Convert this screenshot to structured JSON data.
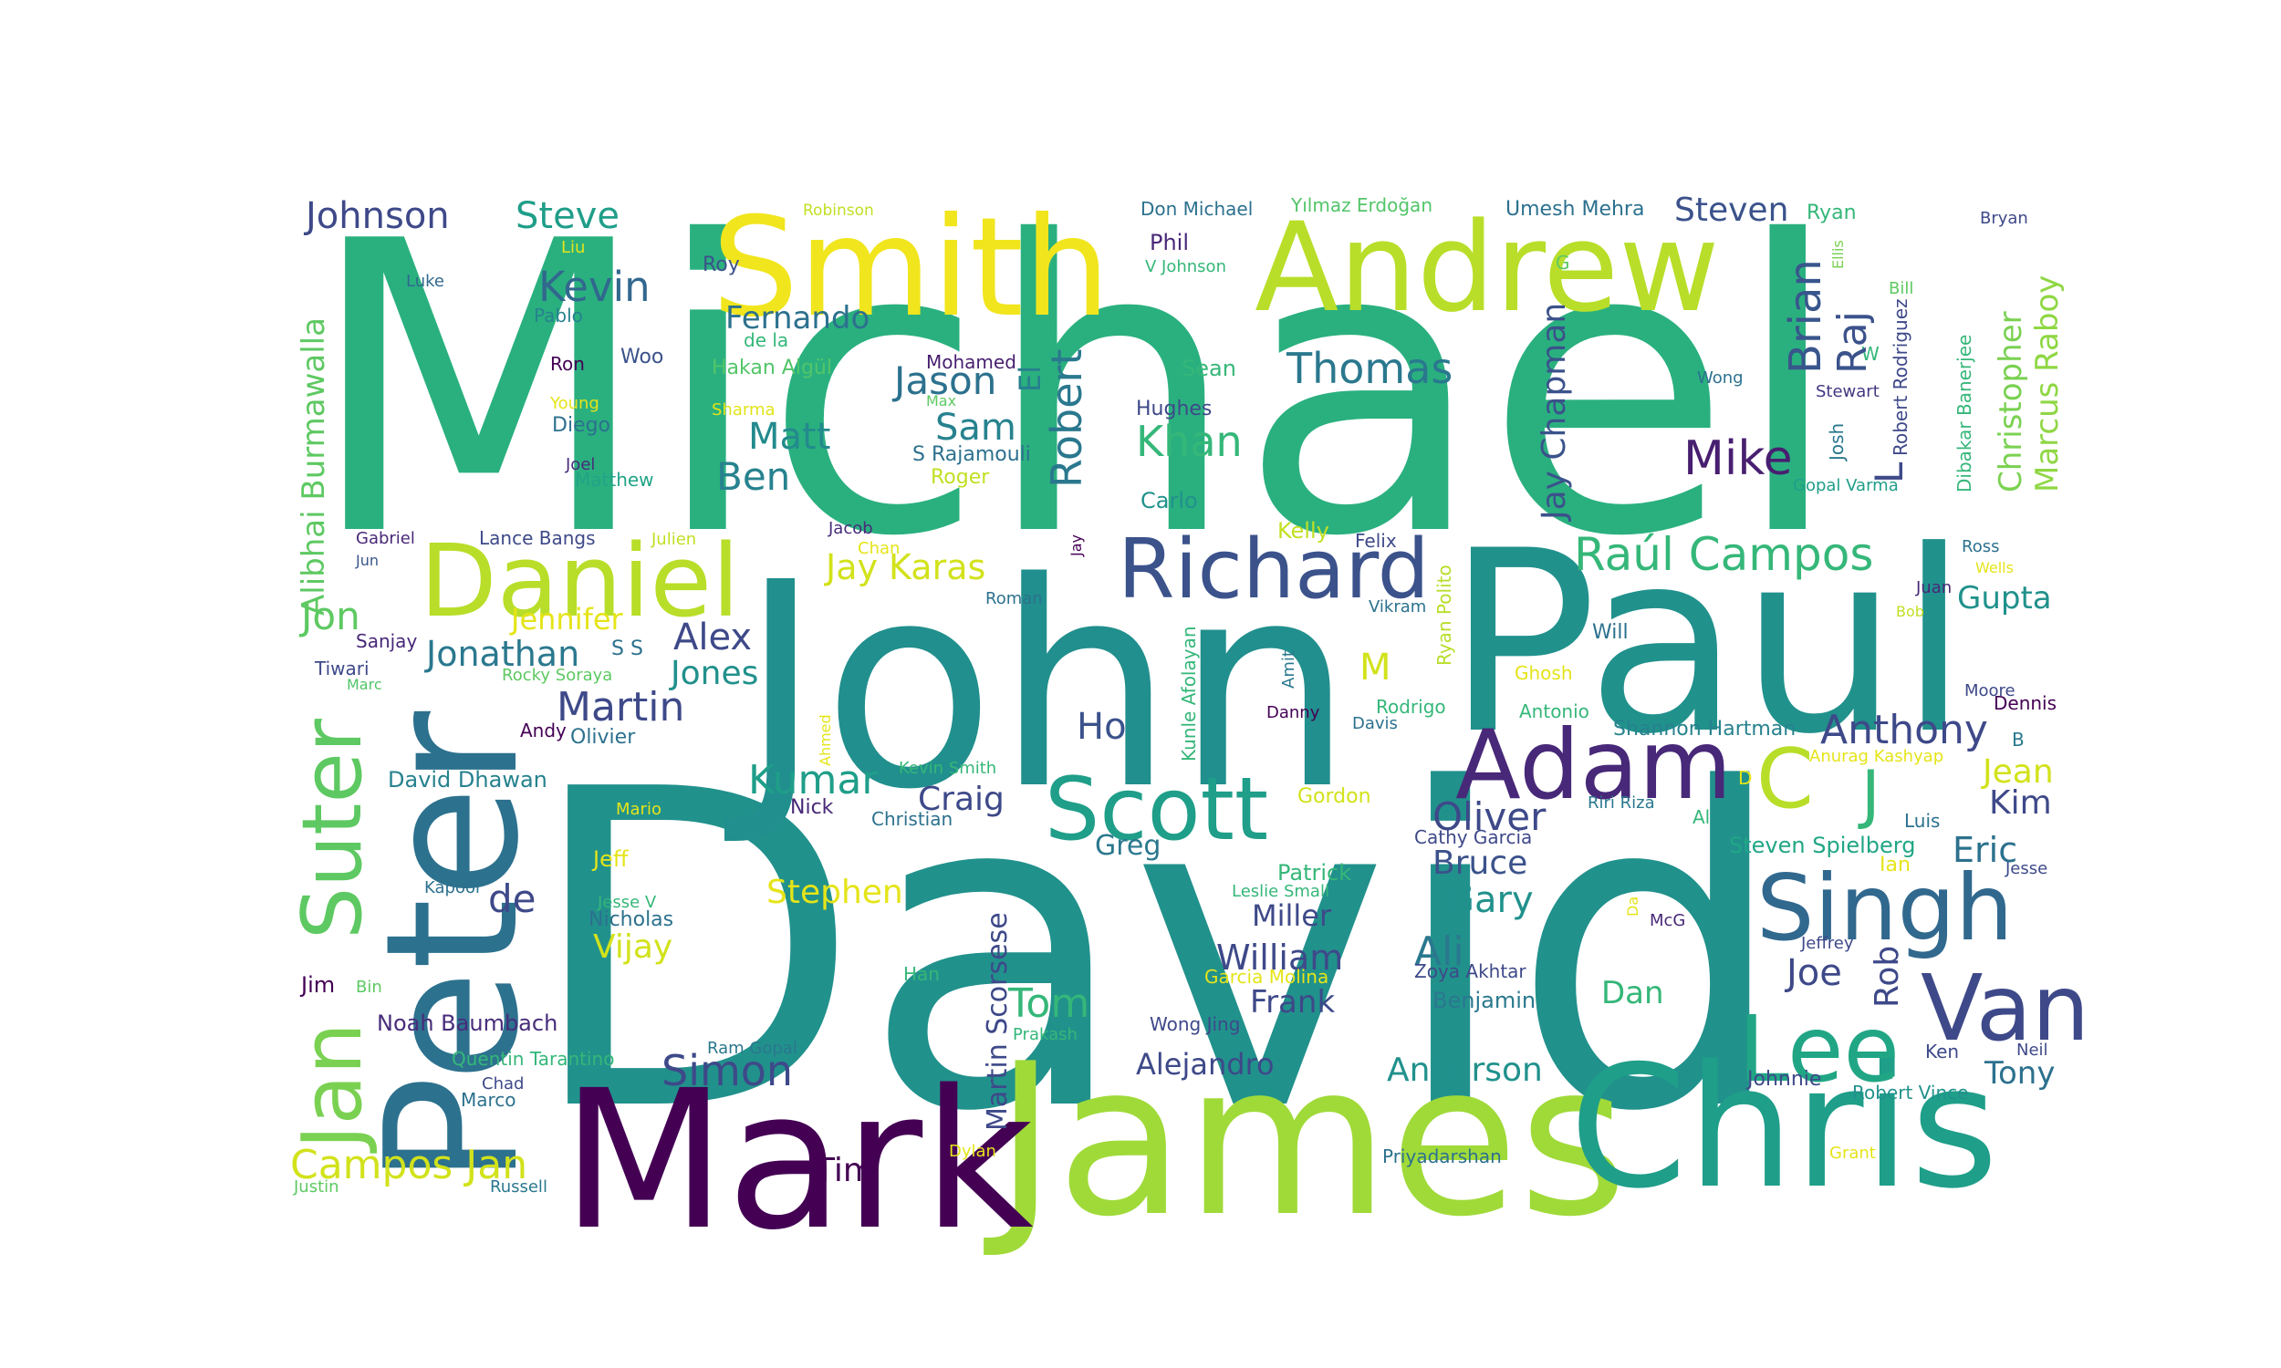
{
  "words": [
    {
      "text": "Michael",
      "color": "#2ab07f"
    },
    {
      "text": "David",
      "color": "#21918c"
    },
    {
      "text": "John",
      "color": "#218f8d"
    },
    {
      "text": "Paul",
      "color": "#21918c"
    },
    {
      "text": "James",
      "color": "#a0da39"
    },
    {
      "text": "Chris",
      "color": "#1f9e89"
    },
    {
      "text": "Mark",
      "color": "#440154"
    },
    {
      "text": "Peter",
      "color": "#2c718e"
    },
    {
      "text": "Smith",
      "color": "#f1e51d"
    },
    {
      "text": "Andrew",
      "color": "#b8de29"
    },
    {
      "text": "Daniel",
      "color": "#b8de29"
    },
    {
      "text": "Richard",
      "color": "#3b528b"
    },
    {
      "text": "Adam",
      "color": "#482878"
    },
    {
      "text": "Scott",
      "color": "#1f9e89"
    },
    {
      "text": "Singh",
      "color": "#31688e"
    },
    {
      "text": "Van",
      "color": "#3e4989"
    },
    {
      "text": "Lee",
      "color": "#21a685"
    },
    {
      "text": "Suter",
      "color": "#5ec962"
    },
    {
      "text": "Jan",
      "color": "#7ad151"
    },
    {
      "text": "Johnson",
      "color": "#3e4989"
    },
    {
      "text": "Steve",
      "color": "#1f9e89"
    },
    {
      "text": "Kevin",
      "color": "#31688e"
    },
    {
      "text": "Fernando",
      "color": "#2c718e"
    },
    {
      "text": "Robinson",
      "color": "#c2df23"
    },
    {
      "text": "Don Michael",
      "color": "#2c718e"
    },
    {
      "text": "Yılmaz Erdoğan",
      "color": "#52c569"
    },
    {
      "text": "Umesh Mehra",
      "color": "#2c718e"
    },
    {
      "text": "Steven",
      "color": "#3b528b"
    },
    {
      "text": "Ryan",
      "color": "#35b779"
    },
    {
      "text": "Bryan",
      "color": "#3e4989"
    },
    {
      "text": "Ellis",
      "color": "#7ad151"
    },
    {
      "text": "Bill",
      "color": "#5ec962"
    },
    {
      "text": "W",
      "color": "#35b779"
    },
    {
      "text": "Stewart",
      "color": "#453781"
    },
    {
      "text": "Wong",
      "color": "#2c718e"
    },
    {
      "text": "Robert Rodriguez",
      "color": "#3e4989"
    },
    {
      "text": "Dibakar Banerjee",
      "color": "#35b779"
    },
    {
      "text": "Christopher",
      "color": "#7ad151"
    },
    {
      "text": "Marcus Raboy",
      "color": "#8fd744"
    },
    {
      "text": "Josh",
      "color": "#2a788e"
    },
    {
      "text": "Gopal Varma",
      "color": "#1f9e89"
    },
    {
      "text": "Brian",
      "color": "#39568c"
    },
    {
      "text": "Raj",
      "color": "#3b528b"
    },
    {
      "text": "L",
      "color": "#3e4989"
    },
    {
      "text": "Jay Chapman",
      "color": "#3b528b"
    },
    {
      "text": "G",
      "color": "#5ec962"
    },
    {
      "text": "Mike",
      "color": "#481f70"
    },
    {
      "text": "Thomas",
      "color": "#2a788e"
    },
    {
      "text": "Khan",
      "color": "#35b779"
    },
    {
      "text": "Robert",
      "color": "#2a788e"
    },
    {
      "text": "El",
      "color": "#277f8e"
    },
    {
      "text": "Jason",
      "color": "#2c718e"
    },
    {
      "text": "Mohamed",
      "color": "#481f70"
    },
    {
      "text": "Max",
      "color": "#5ec962"
    },
    {
      "text": "Sam",
      "color": "#26828e"
    },
    {
      "text": "S Rajamouli",
      "color": "#2c718e"
    },
    {
      "text": "Roger",
      "color": "#c2df23"
    },
    {
      "text": "Matt",
      "color": "#238a8d"
    },
    {
      "text": "Ben",
      "color": "#26828e"
    },
    {
      "text": "Sean",
      "color": "#35b779"
    },
    {
      "text": "Hughes",
      "color": "#3e4989"
    },
    {
      "text": "Phil",
      "color": "#482878"
    },
    {
      "text": "V Johnson",
      "color": "#35b779"
    },
    {
      "text": "Roy",
      "color": "#3b528b"
    },
    {
      "text": "de la",
      "color": "#35b779"
    },
    {
      "text": "Hakan Algül",
      "color": "#52c569"
    },
    {
      "text": "Sharma",
      "color": "#e2e418"
    },
    {
      "text": "Woo",
      "color": "#3b528b"
    },
    {
      "text": "Ron",
      "color": "#440154"
    },
    {
      "text": "Young",
      "color": "#e5e419"
    },
    {
      "text": "Diego",
      "color": "#2c718e"
    },
    {
      "text": "Joel",
      "color": "#472d7b"
    },
    {
      "text": "Matthew",
      "color": "#20a486"
    },
    {
      "text": "Pablo",
      "color": "#26828e"
    },
    {
      "text": "Luke",
      "color": "#31688e"
    },
    {
      "text": "Liu",
      "color": "#e5e419"
    },
    {
      "text": "Alibhai Burmawalla",
      "color": "#5ec962"
    },
    {
      "text": "Carlo",
      "color": "#21918c"
    },
    {
      "text": "Kelly",
      "color": "#c2df23"
    },
    {
      "text": "Felix",
      "color": "#3e4989"
    },
    {
      "text": "Gabriel",
      "color": "#482878"
    },
    {
      "text": "Lance Bangs",
      "color": "#3e4989"
    },
    {
      "text": "Julien",
      "color": "#c2df23"
    },
    {
      "text": "Jacob",
      "color": "#472d7b"
    },
    {
      "text": "Chan",
      "color": "#e5e419"
    },
    {
      "text": "Jay",
      "color": "#440154"
    },
    {
      "text": "Jun",
      "color": "#39568c"
    },
    {
      "text": "Jay Karas",
      "color": "#d2e21b"
    },
    {
      "text": "Raúl Campos",
      "color": "#35b779"
    },
    {
      "text": "Ross",
      "color": "#2c718e"
    },
    {
      "text": "Wells",
      "color": "#e5e419"
    },
    {
      "text": "Gupta",
      "color": "#21918c"
    },
    {
      "text": "Juan",
      "color": "#482878"
    },
    {
      "text": "Bob",
      "color": "#c2df23"
    },
    {
      "text": "Jon",
      "color": "#5ec962"
    },
    {
      "text": "Jennifer",
      "color": "#e5e419"
    },
    {
      "text": "Alex",
      "color": "#3e4989"
    },
    {
      "text": "Roman",
      "color": "#2c718e"
    },
    {
      "text": "Vikram",
      "color": "#2c718e"
    },
    {
      "text": "Ryan Polito",
      "color": "#b8de29"
    },
    {
      "text": "Sanjay",
      "color": "#482878"
    },
    {
      "text": "Jonathan",
      "color": "#2a788e"
    },
    {
      "text": "S S",
      "color": "#2c718e"
    },
    {
      "text": "Tiwari",
      "color": "#3e4989"
    },
    {
      "text": "Marc",
      "color": "#52c569"
    },
    {
      "text": "Rocky Soraya",
      "color": "#5ec962"
    },
    {
      "text": "Jones",
      "color": "#21918c"
    },
    {
      "text": "Kunle Afolayan",
      "color": "#35b779"
    },
    {
      "text": "Amit",
      "color": "#2a788e"
    },
    {
      "text": "M",
      "color": "#d2e21b"
    },
    {
      "text": "Will",
      "color": "#2c718e"
    },
    {
      "text": "Ghosh",
      "color": "#e5e419"
    },
    {
      "text": "Rodrigo",
      "color": "#35b779"
    },
    {
      "text": "Antonio",
      "color": "#35b779"
    },
    {
      "text": "Moore",
      "color": "#3e4989"
    },
    {
      "text": "Dennis",
      "color": "#440154"
    },
    {
      "text": "Martin",
      "color": "#3e4989"
    },
    {
      "text": "Andy",
      "color": "#440154"
    },
    {
      "text": "Olivier",
      "color": "#2c718e"
    },
    {
      "text": "Ahmed",
      "color": "#e5e419"
    },
    {
      "text": "Ho",
      "color": "#3b528b"
    },
    {
      "text": "Danny",
      "color": "#440154"
    },
    {
      "text": "Davis",
      "color": "#2c718e"
    },
    {
      "text": "Shannon Hartman",
      "color": "#26828e"
    },
    {
      "text": "Anthony",
      "color": "#3e4989"
    },
    {
      "text": "B",
      "color": "#2a788e"
    },
    {
      "text": "Anurag Kashyap",
      "color": "#e5e419"
    },
    {
      "text": "C",
      "color": "#b8de29"
    },
    {
      "text": "J",
      "color": "#35b779"
    },
    {
      "text": "Jean",
      "color": "#d2e21b"
    },
    {
      "text": "Kim",
      "color": "#3e4989"
    },
    {
      "text": "D",
      "color": "#e5e419"
    },
    {
      "text": "Riri Riza",
      "color": "#2a788e"
    },
    {
      "text": "David Dhawan",
      "color": "#26828e"
    },
    {
      "text": "Kumar",
      "color": "#1f9e89"
    },
    {
      "text": "Kevin Smith",
      "color": "#35b779"
    },
    {
      "text": "Craig",
      "color": "#3e4989"
    },
    {
      "text": "Nick",
      "color": "#482878"
    },
    {
      "text": "Christian",
      "color": "#2c718e"
    },
    {
      "text": "Mario",
      "color": "#e5e419"
    },
    {
      "text": "Gordon",
      "color": "#d2e21b"
    },
    {
      "text": "Oliver",
      "color": "#3e4989"
    },
    {
      "text": "Greg",
      "color": "#2a788e"
    },
    {
      "text": "Cathy Garcia",
      "color": "#3e4989"
    },
    {
      "text": "Al",
      "color": "#35b779"
    },
    {
      "text": "Luis",
      "color": "#2c718e"
    },
    {
      "text": "Steven Spielberg",
      "color": "#21a685"
    },
    {
      "text": "Eric",
      "color": "#2c718e"
    },
    {
      "text": "Ian",
      "color": "#e5e419"
    },
    {
      "text": "Jesse",
      "color": "#3e4989"
    },
    {
      "text": "Bruce",
      "color": "#3b528b"
    },
    {
      "text": "Patrick",
      "color": "#35b779"
    },
    {
      "text": "Leslie Small",
      "color": "#35b779"
    },
    {
      "text": "Gary",
      "color": "#21918c"
    },
    {
      "text": "Jeff",
      "color": "#e5e419"
    },
    {
      "text": "Kapoor",
      "color": "#2c718e"
    },
    {
      "text": "Jesse V",
      "color": "#35b779"
    },
    {
      "text": "Nicholas",
      "color": "#2c718e"
    },
    {
      "text": "de",
      "color": "#3e4989"
    },
    {
      "text": "Stephen",
      "color": "#e5e419"
    },
    {
      "text": "Vijay",
      "color": "#d2e21b"
    },
    {
      "text": "Martin Scorsese",
      "color": "#3e4989"
    },
    {
      "text": "Miller",
      "color": "#3e4989"
    },
    {
      "text": "William",
      "color": "#3e4989"
    },
    {
      "text": "Ali",
      "color": "#2a788e"
    },
    {
      "text": "Da",
      "color": "#e5e419"
    },
    {
      "text": "McG",
      "color": "#482878"
    },
    {
      "text": "Jeffrey",
      "color": "#3e4989"
    },
    {
      "text": "Han",
      "color": "#35b779"
    },
    {
      "text": "Garcia Molina",
      "color": "#e5e419"
    },
    {
      "text": "Zoya Akhtar",
      "color": "#3e4989"
    },
    {
      "text": "Joe",
      "color": "#3e4989"
    },
    {
      "text": "Rob",
      "color": "#3e4989"
    },
    {
      "text": "Jim",
      "color": "#440154"
    },
    {
      "text": "Bin",
      "color": "#5ec962"
    },
    {
      "text": "Tom",
      "color": "#35b779"
    },
    {
      "text": "Frank",
      "color": "#3e4989"
    },
    {
      "text": "Benjamin",
      "color": "#2a788e"
    },
    {
      "text": "Dan",
      "color": "#35b779"
    },
    {
      "text": "Noah Baumbach",
      "color": "#472d7b"
    },
    {
      "text": "Wong Jing",
      "color": "#3e4989"
    },
    {
      "text": "Prakash",
      "color": "#35b779"
    },
    {
      "text": "Ram Gopal",
      "color": "#2a788e"
    },
    {
      "text": "Quentin Tarantino",
      "color": "#35b779"
    },
    {
      "text": "Simon",
      "color": "#3e4989"
    },
    {
      "text": "Alejandro",
      "color": "#3e4989"
    },
    {
      "text": "Anderson",
      "color": "#21918c"
    },
    {
      "text": "Ken",
      "color": "#3e4989"
    },
    {
      "text": "Neil",
      "color": "#3e4989"
    },
    {
      "text": "Tony",
      "color": "#2c718e"
    },
    {
      "text": "Johnnie",
      "color": "#3e4989"
    },
    {
      "text": "Robert Vince",
      "color": "#21918c"
    },
    {
      "text": "Chad",
      "color": "#3e4989"
    },
    {
      "text": "Marco",
      "color": "#2c718e"
    },
    {
      "text": "Campos Jan",
      "color": "#d2e21b"
    },
    {
      "text": "Tim",
      "color": "#440154"
    },
    {
      "text": "Dylan",
      "color": "#e5e419"
    },
    {
      "text": "Priyadarshan",
      "color": "#2c718e"
    },
    {
      "text": "Grant",
      "color": "#e5e419"
    },
    {
      "text": "Justin",
      "color": "#5ec962"
    },
    {
      "text": "Russell",
      "color": "#2a788e"
    }
  ]
}
